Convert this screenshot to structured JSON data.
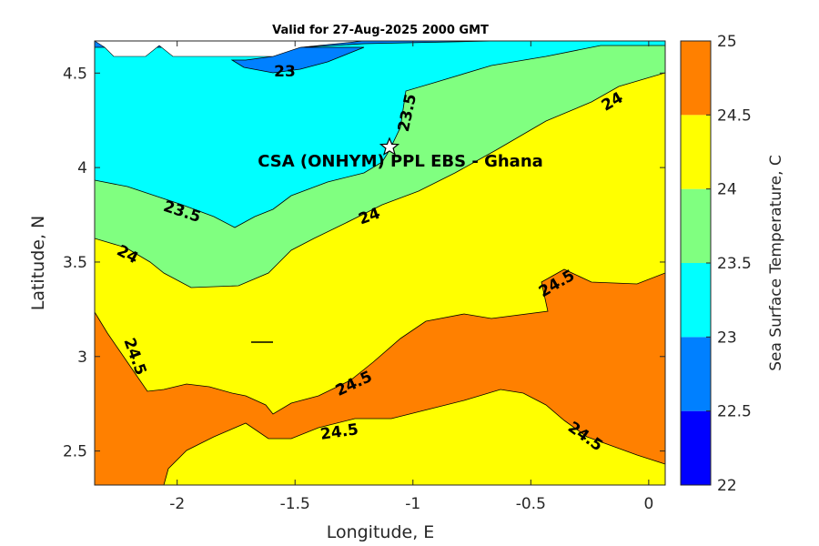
{
  "chart_data": {
    "type": "contour",
    "title": "Valid for 27-Aug-2025 2000 GMT",
    "xlabel": "Longitude, E",
    "ylabel": "Latitude, N",
    "xlim": [
      -2.35,
      0.07
    ],
    "ylim": [
      2.32,
      4.67
    ],
    "xticks": [
      -2,
      -1.5,
      -1,
      -0.5,
      0
    ],
    "xtick_labels": [
      "-2",
      "-1.5",
      "-1",
      "-0.5",
      "0"
    ],
    "yticks": [
      2.5,
      3,
      3.5,
      4,
      4.5
    ],
    "ytick_labels": [
      "2.5",
      "3",
      "3.5",
      "4",
      "4.5"
    ],
    "colorbar": {
      "label": "Sea Surface Temperature, C",
      "levels": [
        22,
        22.5,
        23,
        23.5,
        24,
        24.5,
        25
      ],
      "tick_labels": [
        "22",
        "22.5",
        "23",
        "23.5",
        "24",
        "24.5",
        "25"
      ],
      "colors": [
        "#0000ff",
        "#0080ff",
        "#00ffff",
        "#80ff80",
        "#ffff00",
        "#ff8000"
      ]
    },
    "contour_labels": [
      "23",
      "23.5",
      "23.5",
      "24",
      "24",
      "24",
      "24.5",
      "24.5",
      "24.5",
      "24.5",
      "24.5"
    ],
    "site": {
      "label": "CSA (ONHYM) PPL EBS  - Ghana",
      "lon": -1.1,
      "lat": 4.11
    }
  }
}
